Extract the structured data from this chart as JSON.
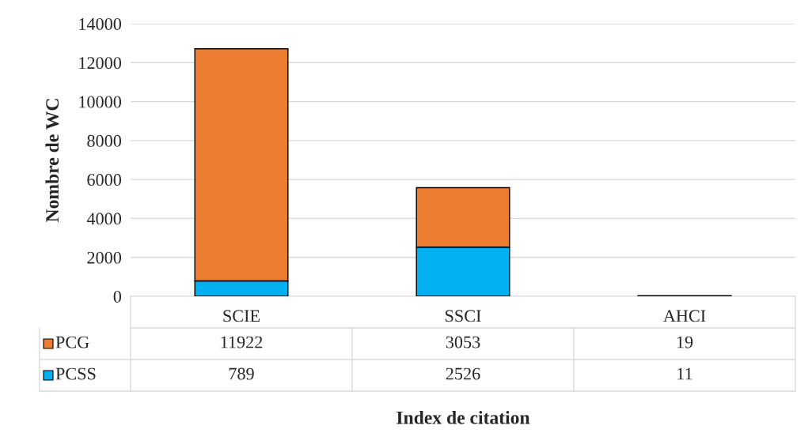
{
  "chart_data": {
    "type": "bar",
    "stacked": true,
    "xlabel": "Index de citation",
    "ylabel": "Nombre de WC",
    "categories": [
      "SCIE",
      "SSCI",
      "AHCI"
    ],
    "series": [
      {
        "name": "PCSS",
        "color": "#00b0f0",
        "values": [
          789,
          2526,
          11
        ]
      },
      {
        "name": "PCG",
        "color": "#ed7d31",
        "values": [
          11922,
          3053,
          19
        ]
      }
    ],
    "ylim": [
      0,
      14000
    ],
    "yticks": [
      0,
      2000,
      4000,
      6000,
      8000,
      10000,
      12000,
      14000
    ],
    "grid": "y",
    "data_labels": true,
    "legend": "bottom"
  }
}
